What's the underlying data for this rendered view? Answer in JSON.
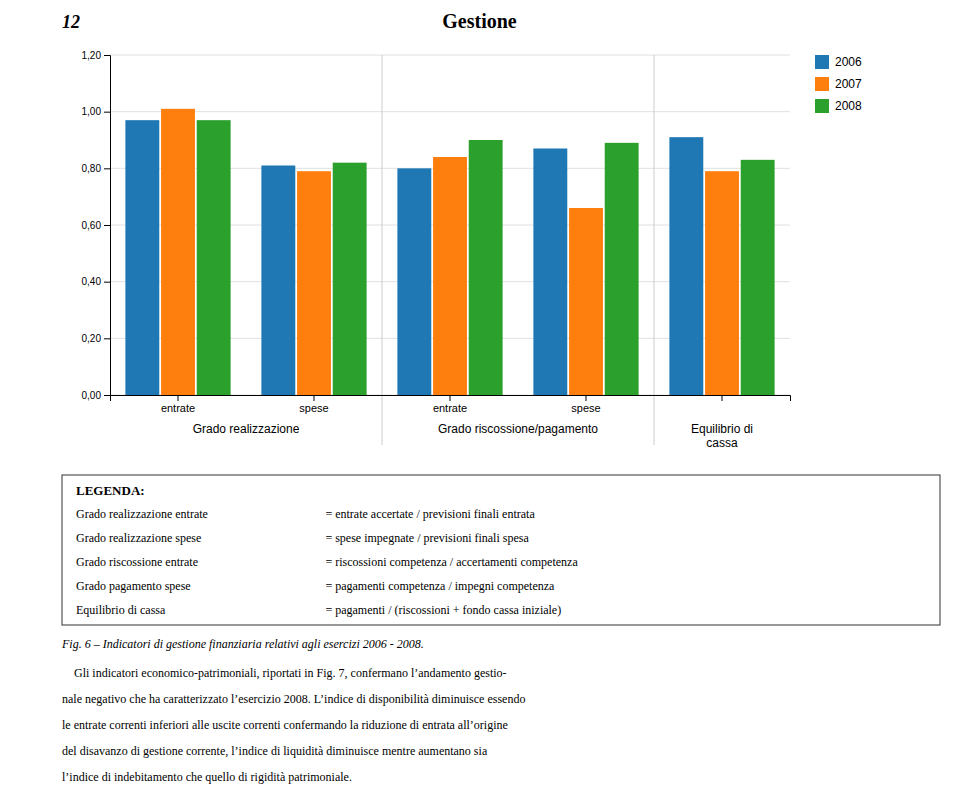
{
  "header_number": "12",
  "header": "Gestione",
  "chart_data": {
    "type": "bar",
    "categories": [
      "entrate",
      "spese",
      "entrate",
      "spese",
      null
    ],
    "category_groups": [
      "Grado realizzazione",
      "Grado realizzazione",
      "Grado riscossione/pagamento",
      "Grado riscossione/pagamento",
      "Equilibrio di\ncassa"
    ],
    "series": [
      {
        "name": "2006",
        "values": [
          0.97,
          0.81,
          0.8,
          0.87,
          0.91
        ]
      },
      {
        "name": "2007",
        "values": [
          1.01,
          0.79,
          0.84,
          0.66,
          0.79
        ]
      },
      {
        "name": "2008",
        "values": [
          0.97,
          0.82,
          0.9,
          0.89,
          0.83
        ]
      }
    ],
    "ylim": [
      0.0,
      1.2
    ],
    "yticks": [
      {
        "value": 0.0,
        "label": "0,00"
      },
      {
        "value": 0.2,
        "label": "0,20"
      },
      {
        "value": 0.4,
        "label": "0,40"
      },
      {
        "value": 0.6,
        "label": "0,60"
      },
      {
        "value": 0.8,
        "label": "0,80"
      },
      {
        "value": 1.0,
        "label": "1,00"
      },
      {
        "value": 1.2,
        "label": "1,20"
      }
    ],
    "grid": true,
    "legend": "upper right"
  },
  "legenda": {
    "title": "LEGENDA:",
    "lines": [
      [
        "Grado realizzazione entrate",
        "= entrate accertate / previsioni finali entrata"
      ],
      [
        "Grado realizzazione spese",
        "= spese impegnate / previsioni finali spesa"
      ],
      [
        "Grado riscossione entrate",
        "= riscossioni competenza / accertamenti competenza"
      ],
      [
        "Grado pagamento spese",
        "= pagamenti competenza / impegni competenza"
      ],
      [
        "Equilibrio di cassa",
        "= pagamenti / (riscossioni + fondo cassa iniziale)"
      ]
    ]
  },
  "caption": "Fig. 6 – Indicatori di gestione finanziaria relativi agli esercizi 2006 - 2008.",
  "body_text": [
    "    Gli indicatori economico-patrimoniali, riportati in Fig. 7, confermano l’andamento gestio-",
    "nale negativo che ha caratterizzato l’esercizio 2008. L’indice di disponibilità diminuisce essendo",
    "le entrate correnti inferiori alle uscite correnti confermando la riduzione di entrata all’origine",
    "del disavanzo di gestione corrente, l’indice di liquidità diminuisce mentre aumentano sia",
    "l’indice di indebitamento che quello di rigidità patrimoniale."
  ]
}
